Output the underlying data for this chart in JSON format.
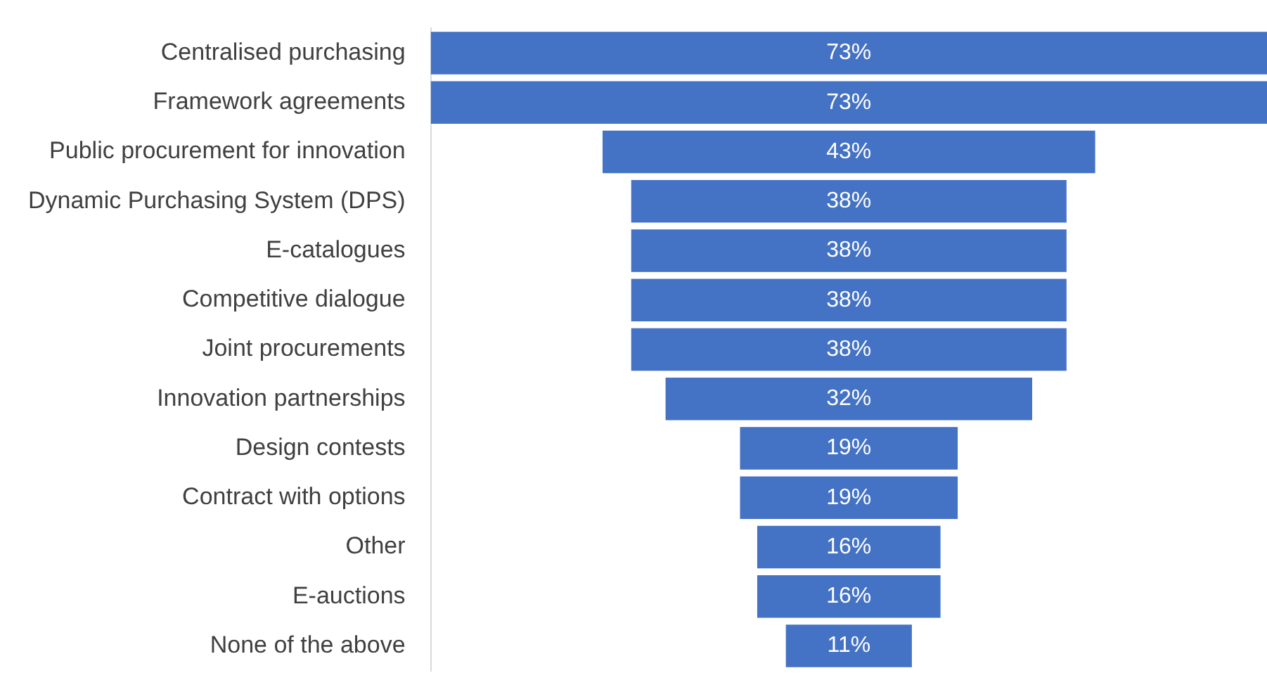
{
  "chart_data": {
    "type": "other",
    "categories": [
      "Centralised purchasing",
      "Framework agreements",
      "Public procurement for innovation",
      "Dynamic Purchasing System (DPS)",
      "E-catalogues",
      "Competitive dialogue",
      "Joint procurements",
      "Innovation partnerships",
      "Design contests",
      "Contract with options",
      "Other",
      "E-auctions",
      "None of the above"
    ],
    "values": [
      73,
      73,
      43,
      38,
      38,
      38,
      38,
      32,
      19,
      19,
      16,
      16,
      11
    ],
    "value_labels": [
      "73%",
      "73%",
      "43%",
      "38%",
      "38%",
      "38%",
      "38%",
      "32%",
      "19%",
      "19%",
      "16%",
      "16%",
      "11%"
    ],
    "color": "#4472c4"
  }
}
